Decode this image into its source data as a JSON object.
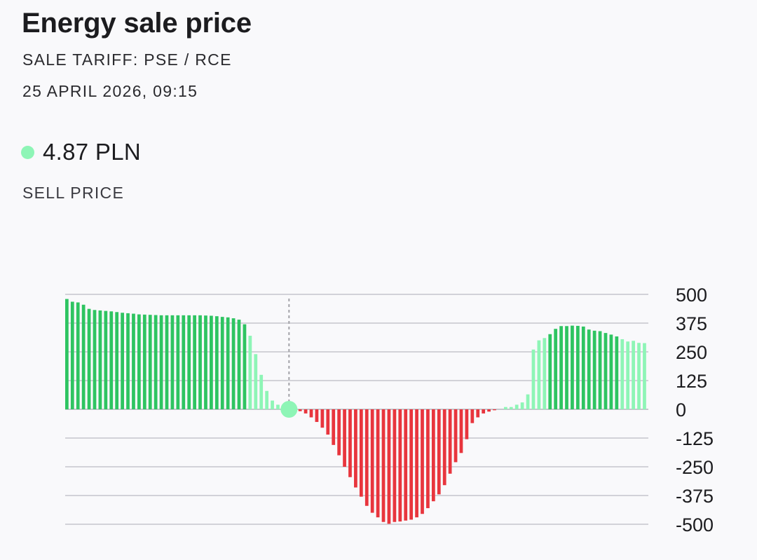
{
  "header": {
    "title": "Energy sale price",
    "tariff": "SALE TARIFF: PSE / RCE",
    "datetime": "25 APRIL 2026, 09:15"
  },
  "current_price": {
    "value": "4.87 PLN",
    "label": "SELL PRICE",
    "dot_color": "#8ef5b6"
  },
  "colors": {
    "positive": "#2ec461",
    "positive_light": "#8ef5b6",
    "negative": "#e8353d",
    "grid": "#c6c6cc",
    "marker_line": "#a3a3a8",
    "marker_dot": "#8ef5b6"
  },
  "chart_data": {
    "type": "bar",
    "title": "",
    "xlabel": "",
    "ylabel": "",
    "ylim": [
      -500,
      500
    ],
    "yticks": [
      500,
      375,
      250,
      125,
      0,
      -125,
      -250,
      -375,
      -500
    ],
    "ytick_labels": [
      "500",
      "375",
      "250",
      "125",
      "0",
      "-125",
      "-250",
      "-375",
      "-500"
    ],
    "grid": true,
    "current_index": 40,
    "values": [
      480,
      468,
      465,
      455,
      437,
      432,
      430,
      428,
      426,
      423,
      420,
      418,
      416,
      413,
      412,
      411,
      410,
      409,
      409,
      409,
      409,
      409,
      409,
      409,
      409,
      408,
      407,
      405,
      402,
      400,
      396,
      390,
      370,
      320,
      240,
      150,
      80,
      38,
      20,
      0,
      0,
      -2,
      -8,
      -18,
      -35,
      -55,
      -80,
      -110,
      -155,
      -200,
      -250,
      -295,
      -340,
      -380,
      -420,
      -450,
      -470,
      -490,
      -498,
      -490,
      -488,
      -484,
      -480,
      -470,
      -455,
      -430,
      -400,
      -370,
      -330,
      -280,
      -230,
      -190,
      -130,
      -60,
      -35,
      -18,
      -10,
      -4,
      0,
      10,
      10,
      20,
      30,
      65,
      260,
      300,
      310,
      327,
      350,
      362,
      362,
      364,
      363,
      360,
      347,
      342,
      340,
      332,
      325,
      317,
      305,
      295,
      298,
      289,
      288
    ],
    "light_ranges": [
      [
        33,
        38
      ],
      [
        79,
        86
      ],
      [
        100,
        104
      ]
    ]
  }
}
